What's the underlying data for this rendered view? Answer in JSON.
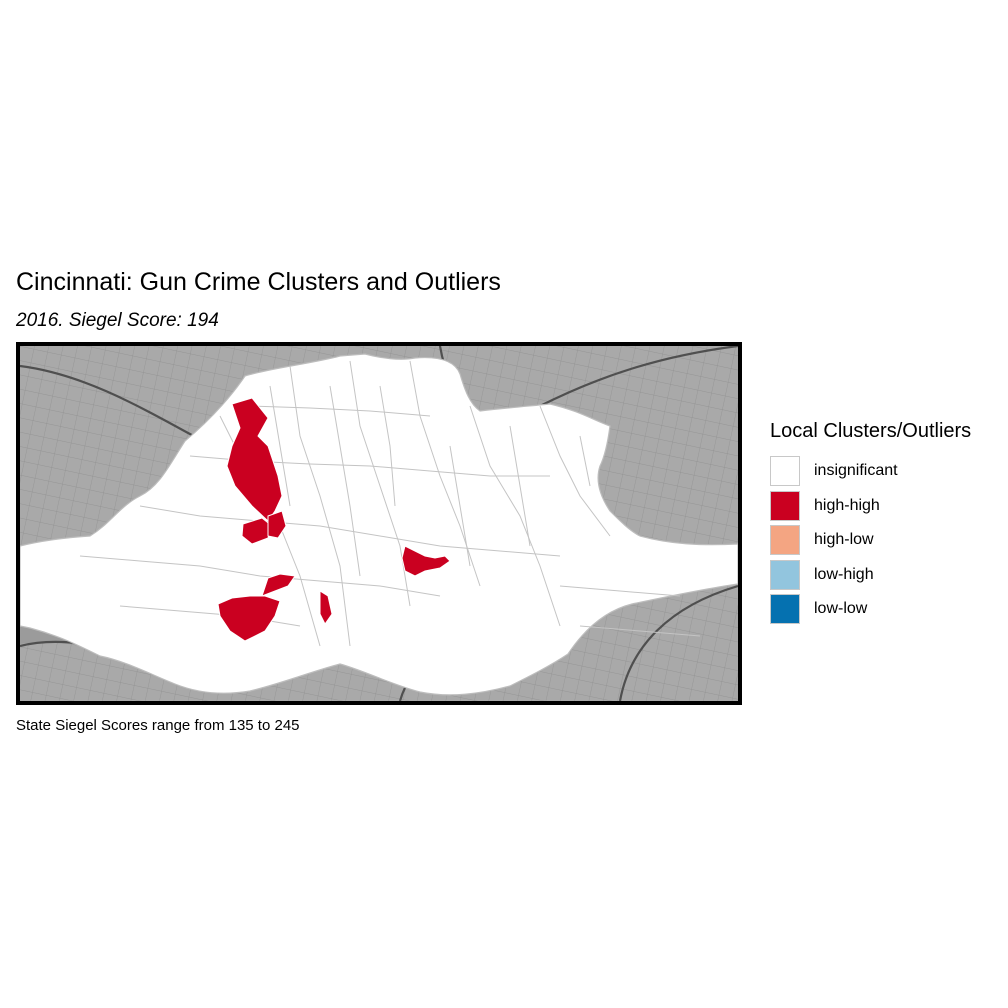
{
  "title": "Cincinnati: Gun Crime Clusters and Outliers",
  "subtitle": "2016. Siegel Score: 194",
  "caption": "State Siegel Scores range from 135 to 245",
  "colors": {
    "basemap": "#a9a9a9",
    "roads": "#5c5c5c",
    "river": "#9b9b9b",
    "tract_border": "#c4c4c4"
  },
  "legend": {
    "title": "Local Clusters/Outliers",
    "items": [
      {
        "label": "insignificant",
        "color": "#ffffff"
      },
      {
        "label": "high-high",
        "color": "#ca0020"
      },
      {
        "label": "high-low",
        "color": "#f4a582"
      },
      {
        "label": "low-high",
        "color": "#92c5de"
      },
      {
        "label": "low-low",
        "color": "#0571b0"
      }
    ]
  }
}
